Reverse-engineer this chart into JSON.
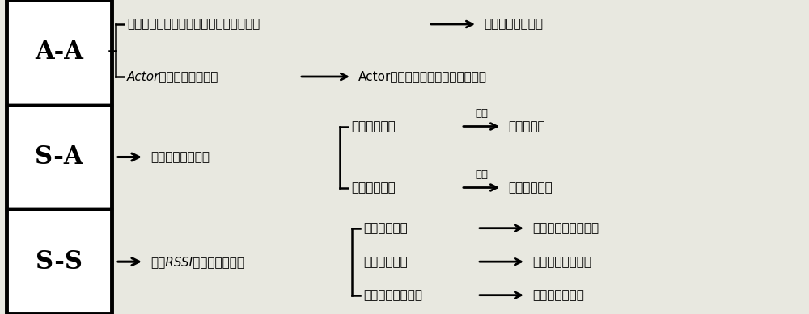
{
  "bg_color": "#e8e8e0",
  "box_color": "#ffffff",
  "figsize": [
    10.0,
    3.89
  ],
  "dpi": 100,
  "aa_line1": "基于密度算一价拍卖的实时任务分配算法",
  "aa_arrow1_label": "实现任务实时分配",
  "aa_line2": "Actor节点重新部署算法",
  "aa_arrow2_label": "Actor节点近似移动到执行区域中心",
  "sa_middle": "角度转发路由协议",
  "sa_sub1": "角度查询阶段",
  "sa_sub1_above": "生成",
  "sa_sub1_result": "单源多路径",
  "sa_sub2": "数据转发阶段",
  "sa_sub2_above": "确认",
  "sa_sub2_result": "单源最短路径",
  "ss_middle": "基于RSSI的动态分簇算法",
  "ss_sub1": "分簇形成阶段",
  "ss_sub1_result": "选出簇头和簇内节点",
  "ss_sub2": "簇内更新阶段",
  "ss_sub2_result": "簇内节点更换簇头",
  "ss_sub3": "簇头重新选举阶段",
  "ss_sub3_result": "选出新簇头节点",
  "labels": [
    "A-A",
    "S-A",
    "S-S"
  ]
}
